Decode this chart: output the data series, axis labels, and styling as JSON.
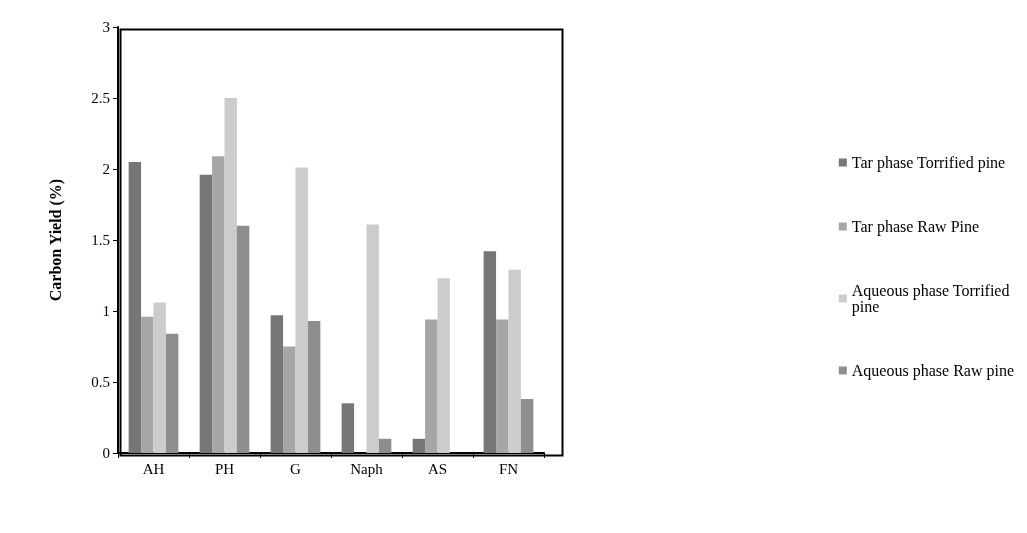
{
  "chart_data": {
    "type": "bar",
    "ylabel": "Carbon Yield (%)",
    "categories": [
      "AH",
      "PH",
      "G",
      "Naph",
      "AS",
      "FN"
    ],
    "series": [
      {
        "name": "Tar phase Torrified pine",
        "color": "#767676",
        "values": [
          2.05,
          1.96,
          0.97,
          0.35,
          0.1,
          1.42
        ]
      },
      {
        "name": "Tar phase Raw Pine",
        "color": "#a6a6a6",
        "values": [
          0.96,
          2.09,
          0.75,
          0,
          0.94,
          0.94
        ]
      },
      {
        "name": "Aqueous phase Torrified pine",
        "color": "#cccccc",
        "values": [
          1.06,
          2.5,
          2.01,
          1.61,
          1.23,
          1.29
        ]
      },
      {
        "name": "Aqueous phase Raw pine",
        "color": "#8e8e8e",
        "values": [
          0.84,
          1.6,
          0.93,
          0.1,
          0,
          0.38
        ]
      }
    ],
    "ylim": [
      0,
      3
    ],
    "yticks": [
      0,
      0.5,
      1,
      1.5,
      2,
      2.5,
      3
    ],
    "grid": false,
    "legend": "right"
  }
}
